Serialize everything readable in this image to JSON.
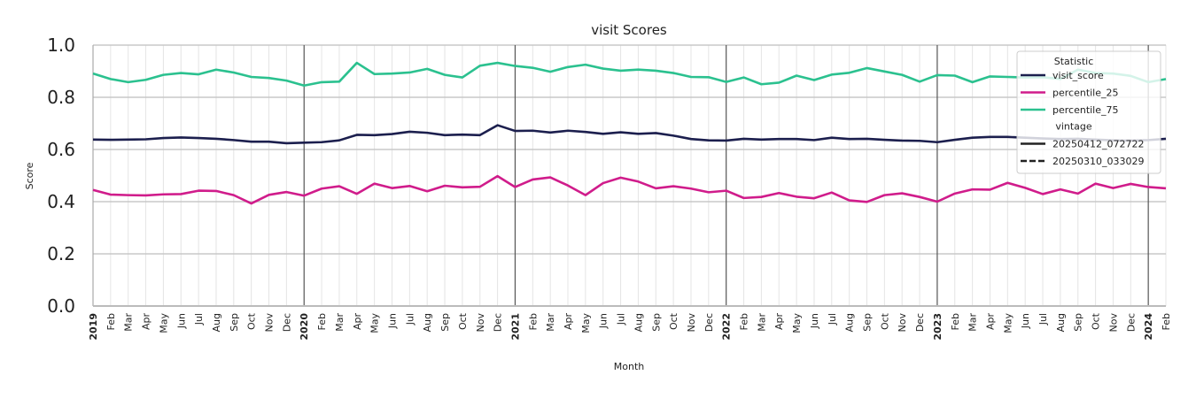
{
  "chart_data": {
    "type": "line",
    "title": "visit Scores",
    "xlabel": "Month",
    "ylabel": "Score",
    "ylim": [
      0.0,
      1.0
    ],
    "yticks": [
      "0.0",
      "0.2",
      "0.4",
      "0.6",
      "0.8",
      "1.0"
    ],
    "year_boundaries": [
      "2019",
      "2020",
      "2021",
      "2022",
      "2023",
      "2024"
    ],
    "x_labels": [
      "2019",
      "Feb",
      "Mar",
      "Apr",
      "May",
      "Jun",
      "Jul",
      "Aug",
      "Sep",
      "Oct",
      "Nov",
      "Dec",
      "2020",
      "Feb",
      "Mar",
      "Apr",
      "May",
      "Jun",
      "Jul",
      "Aug",
      "Sep",
      "Oct",
      "Nov",
      "Dec",
      "2021",
      "Feb",
      "Mar",
      "Apr",
      "May",
      "Jun",
      "Jul",
      "Aug",
      "Sep",
      "Oct",
      "Nov",
      "Dec",
      "2022",
      "Feb",
      "Mar",
      "Apr",
      "May",
      "Jun",
      "Jul",
      "Aug",
      "Sep",
      "Oct",
      "Nov",
      "Dec",
      "2023",
      "Feb",
      "Mar",
      "Apr",
      "May",
      "Jun",
      "Jul",
      "Aug",
      "Sep",
      "Oct",
      "Nov",
      "Dec",
      "2024",
      "Feb"
    ],
    "x_dates": [
      "2019-01",
      "2019-02",
      "2019-03",
      "2019-04",
      "2019-05",
      "2019-06",
      "2019-07",
      "2019-08",
      "2019-09",
      "2019-10",
      "2019-11",
      "2019-12",
      "2020-01",
      "2020-02",
      "2020-03",
      "2020-04",
      "2020-05",
      "2020-06",
      "2020-07",
      "2020-08",
      "2020-09",
      "2020-10",
      "2020-11",
      "2020-12",
      "2021-01",
      "2021-02",
      "2021-03",
      "2021-04",
      "2021-05",
      "2021-06",
      "2021-07",
      "2021-08",
      "2021-09",
      "2021-10",
      "2021-11",
      "2021-12",
      "2022-01",
      "2022-02",
      "2022-03",
      "2022-04",
      "2022-05",
      "2022-06",
      "2022-07",
      "2022-08",
      "2022-09",
      "2022-10",
      "2022-11",
      "2022-12",
      "2023-01",
      "2023-02",
      "2023-03",
      "2023-04",
      "2023-05",
      "2023-06",
      "2023-07",
      "2023-08",
      "2023-09",
      "2023-10",
      "2023-11",
      "2023-12",
      "2024-01",
      "2024-02"
    ],
    "grid": true,
    "series": [
      {
        "name": "visit_score",
        "color": "#1c1f4e",
        "values": [
          0.638,
          0.637,
          0.638,
          0.639,
          0.644,
          0.646,
          0.644,
          0.641,
          0.636,
          0.63,
          0.63,
          0.624,
          0.626,
          0.628,
          0.635,
          0.656,
          0.655,
          0.659,
          0.668,
          0.664,
          0.655,
          0.657,
          0.655,
          0.693,
          0.671,
          0.672,
          0.665,
          0.672,
          0.667,
          0.66,
          0.666,
          0.66,
          0.663,
          0.653,
          0.64,
          0.635,
          0.634,
          0.641,
          0.638,
          0.64,
          0.64,
          0.636,
          0.645,
          0.64,
          0.641,
          0.637,
          0.634,
          0.633,
          0.628,
          0.637,
          0.645,
          0.648,
          0.648,
          0.645,
          0.642,
          0.64,
          0.641,
          0.638,
          0.635,
          0.634,
          0.636,
          0.641
        ]
      },
      {
        "name": "percentile_25",
        "color": "#d01c8b",
        "values": [
          0.445,
          0.427,
          0.425,
          0.424,
          0.428,
          0.429,
          0.442,
          0.441,
          0.425,
          0.393,
          0.426,
          0.437,
          0.423,
          0.45,
          0.459,
          0.43,
          0.469,
          0.452,
          0.46,
          0.44,
          0.461,
          0.455,
          0.457,
          0.498,
          0.456,
          0.485,
          0.493,
          0.462,
          0.425,
          0.471,
          0.492,
          0.477,
          0.451,
          0.459,
          0.45,
          0.436,
          0.442,
          0.414,
          0.418,
          0.433,
          0.419,
          0.413,
          0.435,
          0.405,
          0.399,
          0.425,
          0.432,
          0.418,
          0.4,
          0.431,
          0.447,
          0.446,
          0.472,
          0.453,
          0.429,
          0.447,
          0.431,
          0.469,
          0.452,
          0.468,
          0.456,
          0.451
        ]
      },
      {
        "name": "percentile_75",
        "color": "#2bc18f",
        "values": [
          0.891,
          0.87,
          0.858,
          0.867,
          0.886,
          0.893,
          0.888,
          0.906,
          0.895,
          0.878,
          0.874,
          0.864,
          0.845,
          0.858,
          0.86,
          0.932,
          0.889,
          0.891,
          0.895,
          0.909,
          0.886,
          0.876,
          0.921,
          0.932,
          0.92,
          0.913,
          0.898,
          0.916,
          0.925,
          0.91,
          0.902,
          0.906,
          0.902,
          0.893,
          0.878,
          0.877,
          0.859,
          0.876,
          0.85,
          0.856,
          0.883,
          0.866,
          0.887,
          0.894,
          0.912,
          0.899,
          0.886,
          0.86,
          0.885,
          0.883,
          0.858,
          0.88,
          0.878,
          0.876,
          0.877,
          0.87,
          0.906,
          0.893,
          0.891,
          0.882,
          0.858,
          0.87
        ]
      }
    ],
    "legend": {
      "position": "top-right",
      "title": "Statistic",
      "subtitle": "vintage",
      "vintages": [
        {
          "label": "20250412_072722",
          "style": "solid"
        },
        {
          "label": "20250310_033029",
          "style": "dashed"
        }
      ]
    }
  }
}
